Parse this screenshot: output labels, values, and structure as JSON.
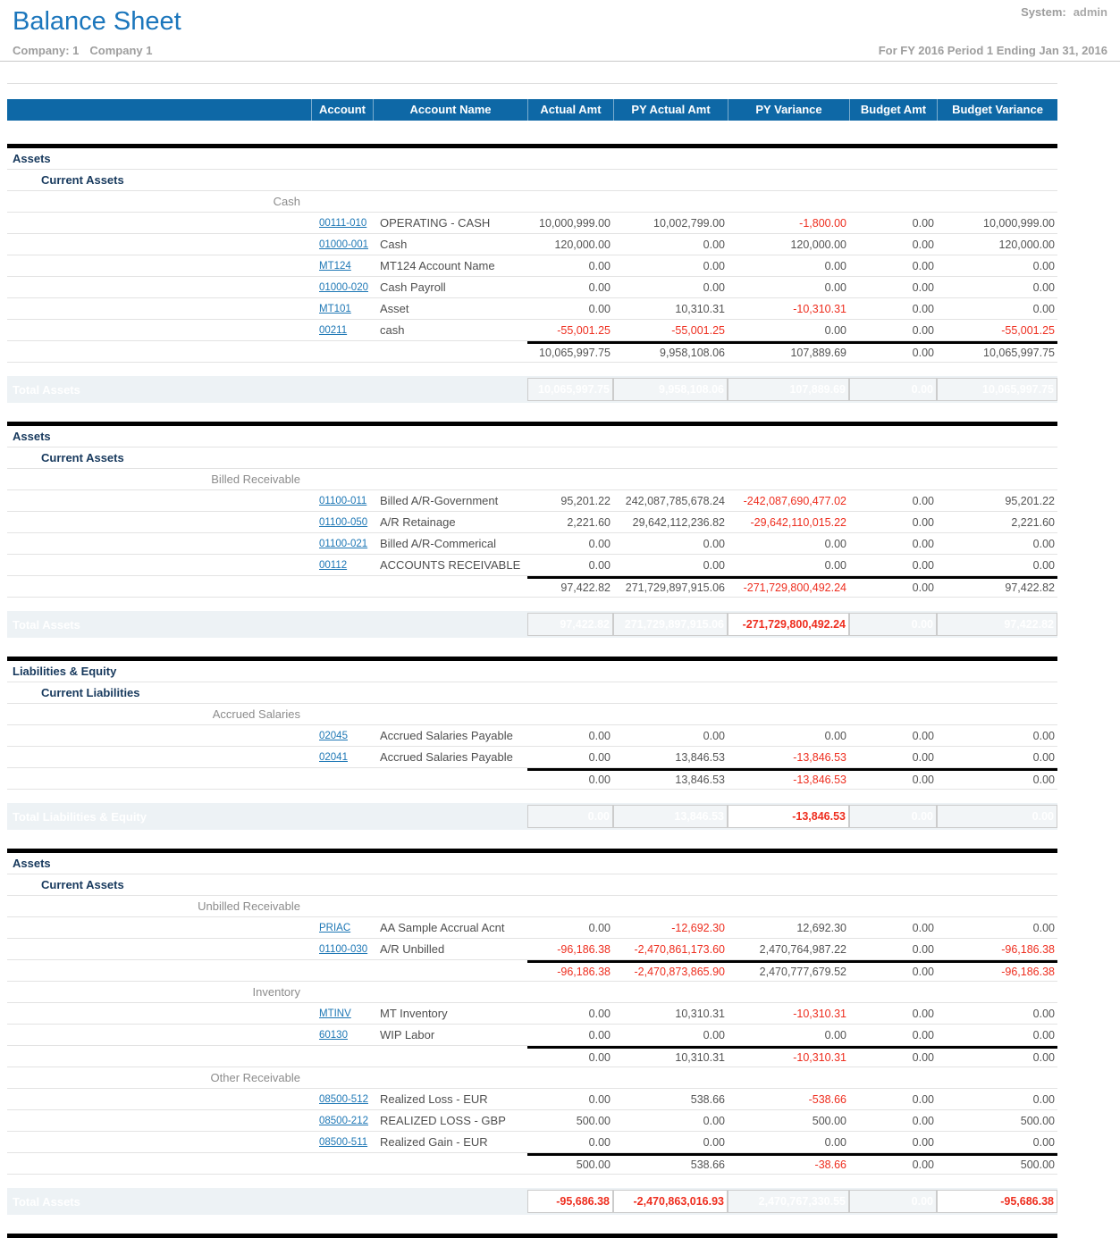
{
  "header": {
    "title": "Balance Sheet",
    "system_label": "System:",
    "system_value": "admin",
    "company_label": "Company: 1",
    "company_name": "Company 1",
    "period": "For FY 2016 Period 1 Ending Jan 31, 2016"
  },
  "table": {
    "columns": [
      "Account",
      "Account Name",
      "Actual Amt",
      "PY Actual Amt",
      "PY Variance",
      "Budget Amt",
      "Budget Variance"
    ]
  },
  "sections": [
    {
      "headers": [
        "Assets",
        "Current Assets"
      ],
      "groups": [
        {
          "label": "Cash",
          "rows": [
            {
              "account": "00111-010",
              "name": "OPERATING - CASH",
              "values": [
                "10,000,999.00",
                "10,002,799.00",
                "-1,800.00",
                "0.00",
                "10,000,999.00"
              ]
            },
            {
              "account": "01000-001",
              "name": "Cash",
              "values": [
                "120,000.00",
                "0.00",
                "120,000.00",
                "0.00",
                "120,000.00"
              ]
            },
            {
              "account": "MT124",
              "name": "MT124 Account Name",
              "values": [
                "0.00",
                "0.00",
                "0.00",
                "0.00",
                "0.00"
              ]
            },
            {
              "account": "01000-020",
              "name": "Cash Payroll",
              "values": [
                "0.00",
                "0.00",
                "0.00",
                "0.00",
                "0.00"
              ]
            },
            {
              "account": "MT101",
              "name": "Asset",
              "values": [
                "0.00",
                "10,310.31",
                "-10,310.31",
                "0.00",
                "0.00"
              ]
            },
            {
              "account": "00211",
              "name": "cash",
              "values": [
                "-55,001.25",
                "-55,001.25",
                "0.00",
                "0.00",
                "-55,001.25"
              ]
            }
          ],
          "subtotal": [
            "10,065,997.75",
            "9,958,108.06",
            "107,889.69",
            "0.00",
            "10,065,997.75"
          ]
        }
      ],
      "total": {
        "label": "Total Assets",
        "values": [
          "10,065,997.75",
          "9,958,108.06",
          "107,889.69",
          "0.00",
          "10,065,997.75"
        ]
      }
    },
    {
      "headers": [
        "Assets",
        "Current Assets"
      ],
      "groups": [
        {
          "label": "Billed Receivable",
          "rows": [
            {
              "account": "01100-011",
              "name": "Billed A/R-Government",
              "values": [
                "95,201.22",
                "242,087,785,678.24",
                "-242,087,690,477.02",
                "0.00",
                "95,201.22"
              ]
            },
            {
              "account": "01100-050",
              "name": "A/R Retainage",
              "values": [
                "2,221.60",
                "29,642,112,236.82",
                "-29,642,110,015.22",
                "0.00",
                "2,221.60"
              ]
            },
            {
              "account": "01100-021",
              "name": "Billed A/R-Commerical",
              "values": [
                "0.00",
                "0.00",
                "0.00",
                "0.00",
                "0.00"
              ]
            },
            {
              "account": "00112",
              "name": "ACCOUNTS RECEIVABLE",
              "values": [
                "0.00",
                "0.00",
                "0.00",
                "0.00",
                "0.00"
              ]
            }
          ],
          "subtotal": [
            "97,422.82",
            "271,729,897,915.06",
            "-271,729,800,492.24",
            "0.00",
            "97,422.82"
          ]
        }
      ],
      "total": {
        "label": "Total Assets",
        "values": [
          "97,422.82",
          "271,729,897,915.06",
          "-271,729,800,492.24",
          "0.00",
          "97,422.82"
        ]
      }
    },
    {
      "headers": [
        "Liabilities & Equity",
        "Current Liabilities"
      ],
      "groups": [
        {
          "label": "Accrued Salaries",
          "rows": [
            {
              "account": "02045",
              "name": "Accrued Salaries Payable",
              "values": [
                "0.00",
                "0.00",
                "0.00",
                "0.00",
                "0.00"
              ]
            },
            {
              "account": "02041",
              "name": "Accrued Salaries Payable",
              "values": [
                "0.00",
                "13,846.53",
                "-13,846.53",
                "0.00",
                "0.00"
              ]
            }
          ],
          "subtotal": [
            "0.00",
            "13,846.53",
            "-13,846.53",
            "0.00",
            "0.00"
          ]
        }
      ],
      "total": {
        "label": "Total Liabilities & Equity",
        "values": [
          "0.00",
          "13,846.53",
          "-13,846.53",
          "0.00",
          "0.00"
        ]
      }
    },
    {
      "headers": [
        "Assets",
        "Current Assets"
      ],
      "groups": [
        {
          "label": "Unbilled Receivable",
          "rows": [
            {
              "account": "PRIAC",
              "name": "AA Sample Accrual Acnt",
              "values": [
                "0.00",
                "-12,692.30",
                "12,692.30",
                "0.00",
                "0.00"
              ]
            },
            {
              "account": "01100-030",
              "name": "A/R Unbilled",
              "values": [
                "-96,186.38",
                "-2,470,861,173.60",
                "2,470,764,987.22",
                "0.00",
                "-96,186.38"
              ]
            }
          ],
          "subtotal": [
            "-96,186.38",
            "-2,470,873,865.90",
            "2,470,777,679.52",
            "0.00",
            "-96,186.38"
          ]
        },
        {
          "label": "Inventory",
          "rows": [
            {
              "account": "MTINV",
              "name": "MT Inventory",
              "values": [
                "0.00",
                "10,310.31",
                "-10,310.31",
                "0.00",
                "0.00"
              ]
            },
            {
              "account": "60130",
              "name": "WIP Labor",
              "values": [
                "0.00",
                "0.00",
                "0.00",
                "0.00",
                "0.00"
              ]
            }
          ],
          "subtotal": [
            "0.00",
            "10,310.31",
            "-10,310.31",
            "0.00",
            "0.00"
          ]
        },
        {
          "label": "Other Receivable",
          "rows": [
            {
              "account": "08500-512",
              "name": "Realized Loss - EUR",
              "values": [
                "0.00",
                "538.66",
                "-538.66",
                "0.00",
                "0.00"
              ]
            },
            {
              "account": "08500-212",
              "name": "REALIZED LOSS - GBP",
              "values": [
                "500.00",
                "0.00",
                "500.00",
                "0.00",
                "500.00"
              ]
            },
            {
              "account": "08500-511",
              "name": "Realized Gain - EUR",
              "values": [
                "0.00",
                "0.00",
                "0.00",
                "0.00",
                "0.00"
              ]
            }
          ],
          "subtotal": [
            "500.00",
            "538.66",
            "-38.66",
            "0.00",
            "500.00"
          ]
        }
      ],
      "total": {
        "label": "Total Assets",
        "values": [
          "-95,686.38",
          "-2,470,863,016.93",
          "2,470,767,330.55",
          "0.00",
          "-95,686.38"
        ]
      }
    }
  ]
}
